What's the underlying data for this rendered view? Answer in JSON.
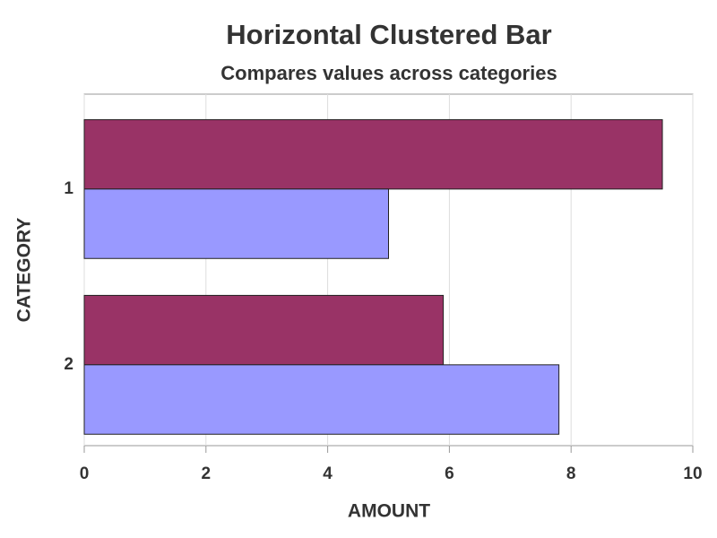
{
  "chart_data": {
    "type": "hbar",
    "title": "Horizontal Clustered Bar",
    "subtitle": "Compares values across categories",
    "x_label": "AMOUNT",
    "y_label": "CATEGORY",
    "categories": [
      "1",
      "2"
    ],
    "series": [
      {
        "color": "#993366",
        "values": [
          9.5,
          5.9
        ]
      },
      {
        "color": "#9999ff",
        "values": [
          5.0,
          7.8
        ]
      }
    ],
    "xlim": [
      0,
      10
    ],
    "xticks": [
      0,
      2,
      4,
      6,
      8,
      10
    ],
    "grid": true
  }
}
